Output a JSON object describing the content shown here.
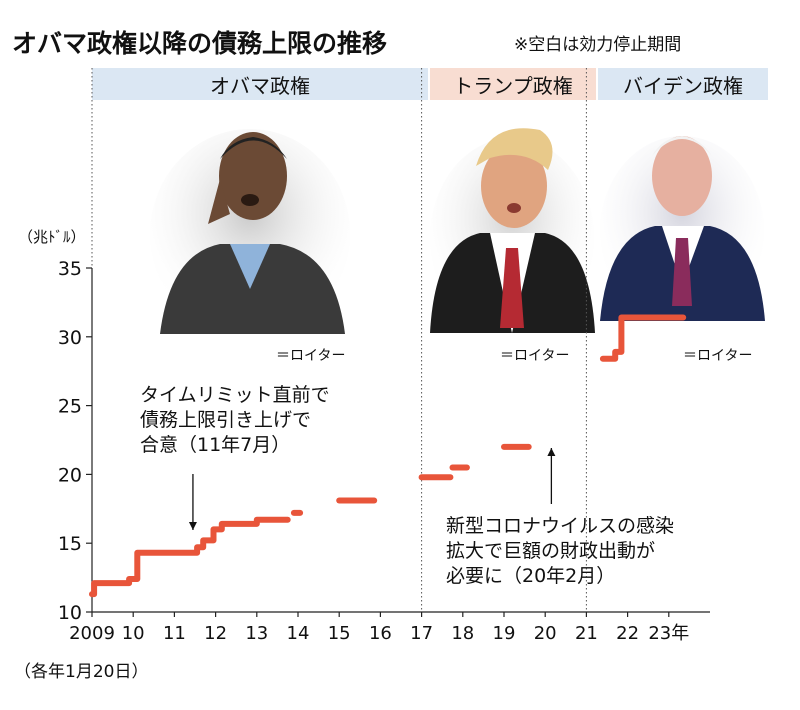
{
  "header": {
    "title": "オバマ政権以降の債務上限の推移",
    "note": "※空白は効力停止期間"
  },
  "eras": [
    {
      "label": "オバマ政権",
      "color": "#dbe7f3"
    },
    {
      "label": "トランプ政権",
      "color": "#f8ddd2"
    },
    {
      "label": "バイデン政権",
      "color": "#dbe7f3"
    }
  ],
  "credits": [
    "＝ロイター",
    "＝ロイター",
    "＝ロイター"
  ],
  "annotations": {
    "left": [
      "タイムリミット直前で",
      "債務上限引き上げで",
      "合意（11年7月）"
    ],
    "right": [
      "新型コロナウイルスの感染",
      "拡大で巨額の財政出動が",
      "必要に（20年2月）"
    ]
  },
  "chart_data": {
    "type": "line",
    "ylabel": "（兆ﾄﾞﾙ）",
    "xnote": "（各年1月20日）",
    "ylim": [
      10,
      35
    ],
    "yticks": [
      10,
      15,
      20,
      25,
      30,
      35
    ],
    "xlim": [
      2009,
      2024
    ],
    "xticks": [
      {
        "x": 2009,
        "label": "2009"
      },
      {
        "x": 2010,
        "label": "10"
      },
      {
        "x": 2011,
        "label": "11"
      },
      {
        "x": 2012,
        "label": "12"
      },
      {
        "x": 2013,
        "label": "13"
      },
      {
        "x": 2014,
        "label": "14"
      },
      {
        "x": 2015,
        "label": "15"
      },
      {
        "x": 2016,
        "label": "16"
      },
      {
        "x": 2017,
        "label": "17"
      },
      {
        "x": 2018,
        "label": "18"
      },
      {
        "x": 2019,
        "label": "19"
      },
      {
        "x": 2020,
        "label": "20"
      },
      {
        "x": 2021,
        "label": "21"
      },
      {
        "x": 2022,
        "label": "22"
      },
      {
        "x": 2023,
        "label": "23年"
      }
    ],
    "era_dividers": [
      2009,
      2017,
      2021
    ],
    "color": "#e8553a",
    "series": [
      {
        "values": [
          [
            2009.0,
            11.3
          ],
          [
            2009.05,
            11.3
          ],
          [
            2009.05,
            12.1
          ],
          [
            2009.9,
            12.1
          ],
          [
            2009.9,
            12.4
          ],
          [
            2010.1,
            12.4
          ],
          [
            2010.1,
            14.3
          ],
          [
            2011.55,
            14.3
          ],
          [
            2011.55,
            14.7
          ],
          [
            2011.7,
            14.7
          ],
          [
            2011.7,
            15.2
          ],
          [
            2011.95,
            15.2
          ],
          [
            2011.95,
            16.0
          ],
          [
            2012.15,
            16.0
          ],
          [
            2012.15,
            16.4
          ],
          [
            2013.0,
            16.4
          ],
          [
            2013.0,
            16.7
          ],
          [
            2013.75,
            16.7
          ]
        ]
      },
      {
        "values": [
          [
            2013.9,
            17.2
          ],
          [
            2014.05,
            17.2
          ]
        ]
      },
      {
        "values": [
          [
            2015.0,
            18.1
          ],
          [
            2015.85,
            18.1
          ]
        ]
      },
      {
        "values": [
          [
            2017.0,
            19.8
          ],
          [
            2017.7,
            19.8
          ]
        ]
      },
      {
        "values": [
          [
            2017.75,
            20.5
          ],
          [
            2018.1,
            20.5
          ]
        ]
      },
      {
        "values": [
          [
            2019.0,
            22.0
          ],
          [
            2019.6,
            22.0
          ]
        ]
      },
      {
        "values": [
          [
            2021.4,
            28.4
          ],
          [
            2021.7,
            28.4
          ],
          [
            2021.7,
            28.9
          ],
          [
            2021.85,
            28.9
          ],
          [
            2021.85,
            31.4
          ],
          [
            2023.35,
            31.4
          ]
        ]
      }
    ]
  }
}
